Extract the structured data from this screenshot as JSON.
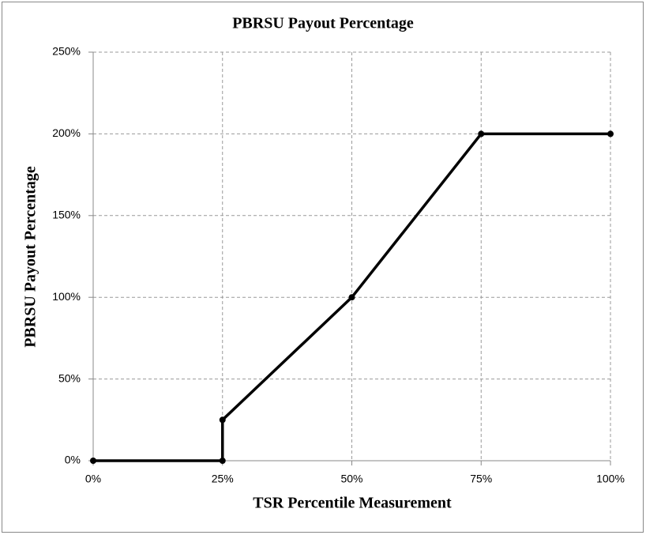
{
  "chart_data": {
    "type": "line",
    "title": "PBRSU Payout Percentage",
    "x_label": "TSR Percentile Measurement",
    "y_label": "PBRSU Payout Percentage",
    "x": [
      0,
      25,
      25,
      50,
      75,
      100
    ],
    "series": [
      {
        "name": "PBRSU Payout Percentage",
        "color": "#000000",
        "values": [
          0,
          0,
          25,
          100,
          200,
          200
        ]
      }
    ],
    "xlim": [
      0,
      100
    ],
    "xticks": [
      {
        "value": 0,
        "label": "0%"
      },
      {
        "value": 25,
        "label": "25%"
      },
      {
        "value": 50,
        "label": "50%"
      },
      {
        "value": 75,
        "label": "75%"
      },
      {
        "value": 100,
        "label": "100%"
      }
    ],
    "ylim": [
      0,
      250
    ],
    "yticks": [
      {
        "value": 0,
        "label": "0%"
      },
      {
        "value": 50,
        "label": "50%"
      },
      {
        "value": 100,
        "label": "100%"
      },
      {
        "value": 150,
        "label": "150%"
      },
      {
        "value": 200,
        "label": "200%"
      },
      {
        "value": 250,
        "label": "250%"
      }
    ],
    "grid": true
  }
}
